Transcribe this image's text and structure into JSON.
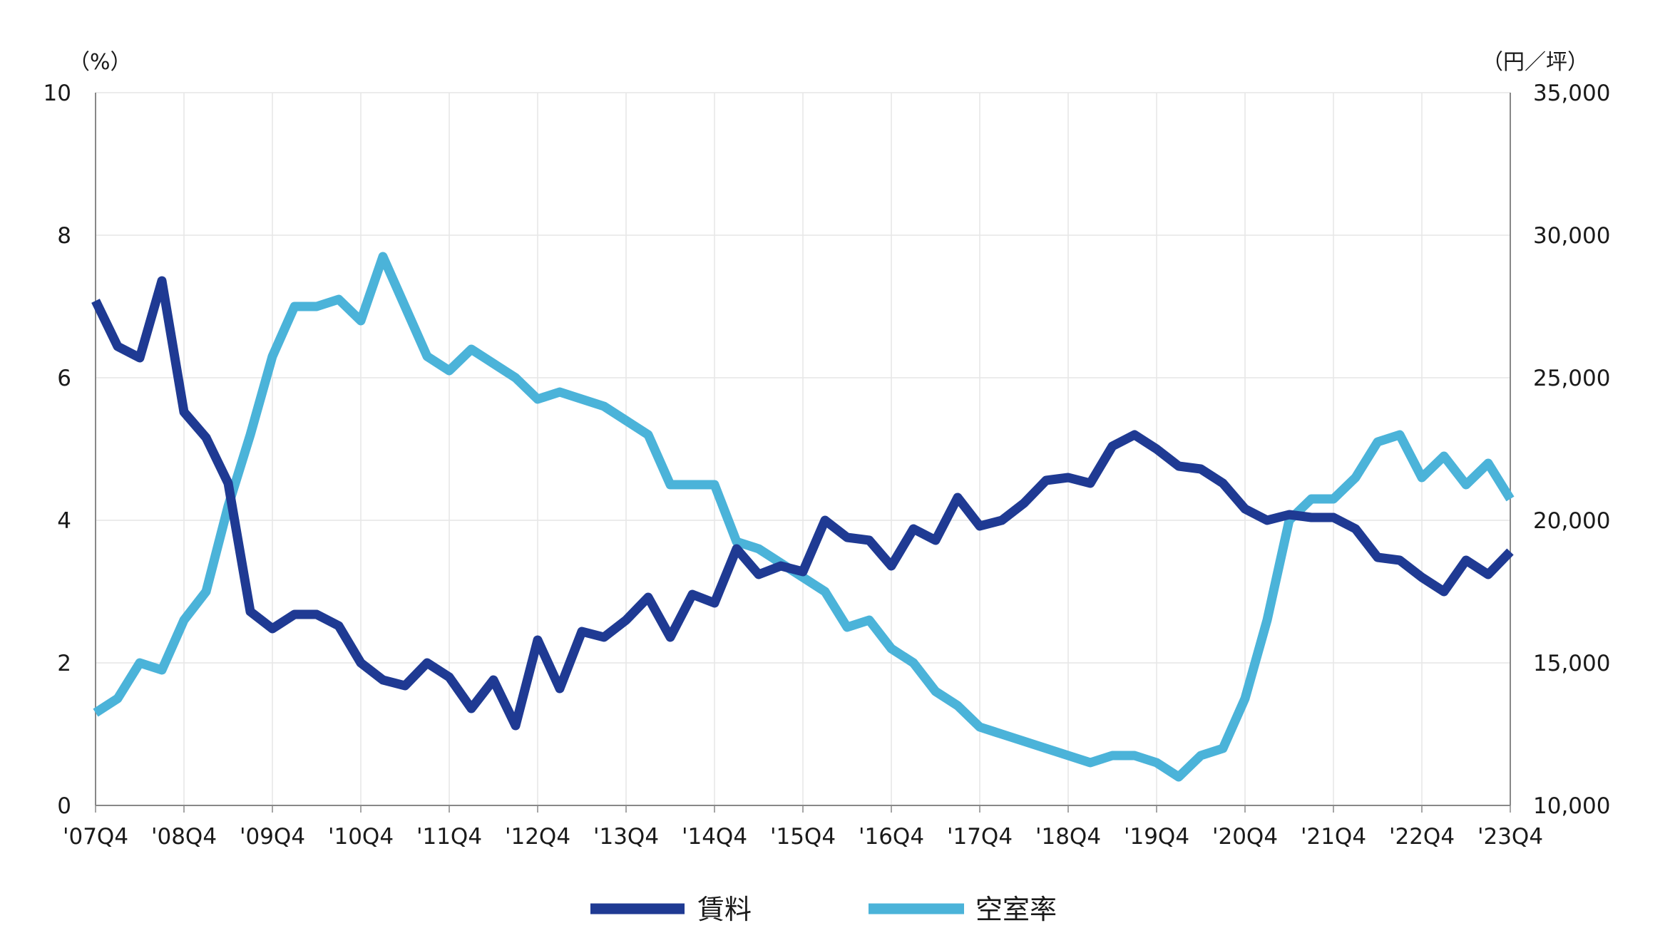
{
  "chart_data": {
    "type": "line",
    "categories": [
      "'07Q4",
      "'08Q1",
      "'08Q2",
      "'08Q3",
      "'08Q4",
      "'09Q1",
      "'09Q2",
      "'09Q3",
      "'09Q4",
      "'10Q1",
      "'10Q2",
      "'10Q3",
      "'10Q4",
      "'11Q1",
      "'11Q2",
      "'11Q3",
      "'11Q4",
      "'12Q1",
      "'12Q2",
      "'12Q3",
      "'12Q4",
      "'13Q1",
      "'13Q2",
      "'13Q3",
      "'13Q4",
      "'14Q1",
      "'14Q2",
      "'14Q3",
      "'14Q4",
      "'15Q1",
      "'15Q2",
      "'15Q3",
      "'15Q4",
      "'16Q1",
      "'16Q2",
      "'16Q3",
      "'16Q4",
      "'17Q1",
      "'17Q2",
      "'17Q3",
      "'17Q4",
      "'18Q1",
      "'18Q2",
      "'18Q3",
      "'18Q4",
      "'19Q1",
      "'19Q2",
      "'19Q3",
      "'19Q4",
      "'20Q1",
      "'20Q2",
      "'20Q3",
      "'20Q4",
      "'21Q1",
      "'21Q2",
      "'21Q3",
      "'21Q4",
      "'22Q1",
      "'22Q2",
      "'22Q3",
      "'22Q4",
      "'23Q1",
      "'23Q2",
      "'23Q3",
      "'23Q4"
    ],
    "x_tick_labels": [
      "'07Q4",
      "'08Q4",
      "'09Q4",
      "'10Q4",
      "'11Q4",
      "'12Q4",
      "'13Q4",
      "'14Q4",
      "'15Q4",
      "'16Q4",
      "'17Q4",
      "'18Q4",
      "'19Q4",
      "'20Q4",
      "'21Q4",
      "'22Q4",
      "'23Q4"
    ],
    "y_left": {
      "unit_label": "（%）",
      "lim": [
        0,
        10
      ],
      "ticks": [
        "0",
        "2",
        "4",
        "6",
        "8",
        "10"
      ]
    },
    "y_right": {
      "unit_label": "（円／坪）",
      "lim": [
        10000,
        35000
      ],
      "ticks": [
        "10,000",
        "15,000",
        "20,000",
        "25,000",
        "30,000",
        "35,000"
      ]
    },
    "grid": true,
    "legend_position": "bottom-center",
    "series": [
      {
        "name": "賃料",
        "axis": "right",
        "color": "#1f3a93",
        "values": [
          27700,
          26100,
          25700,
          28400,
          23800,
          22900,
          21300,
          16800,
          16200,
          16700,
          16700,
          16300,
          15000,
          14400,
          14200,
          15000,
          14500,
          13400,
          14400,
          12800,
          15800,
          14100,
          16100,
          15900,
          16500,
          17300,
          15900,
          17400,
          17100,
          19000,
          18100,
          18400,
          18200,
          20000,
          19400,
          19300,
          18400,
          19700,
          19300,
          20800,
          19800,
          20000,
          20600,
          21400,
          21500,
          21300,
          22600,
          23000,
          22500,
          21900,
          21800,
          21300,
          20400,
          20000,
          20200,
          20100,
          20100,
          19700,
          18700,
          18600,
          18000,
          17500,
          18600,
          18100,
          18900
        ]
      },
      {
        "name": "空室率",
        "axis": "left",
        "color": "#4bb3d9",
        "values": [
          1.3,
          1.5,
          2.0,
          1.9,
          2.6,
          3.0,
          4.2,
          5.2,
          6.3,
          7.0,
          7.0,
          7.1,
          6.8,
          7.7,
          7.0,
          6.3,
          6.1,
          6.4,
          6.2,
          6.0,
          5.7,
          5.8,
          5.7,
          5.6,
          5.4,
          5.2,
          4.5,
          4.5,
          4.5,
          3.7,
          3.6,
          3.4,
          3.2,
          3.0,
          2.5,
          2.6,
          2.2,
          2.0,
          1.6,
          1.4,
          1.1,
          1.0,
          0.9,
          0.8,
          0.7,
          0.6,
          0.7,
          0.7,
          0.6,
          0.4,
          0.7,
          0.8,
          1.5,
          2.6,
          4.0,
          4.3,
          4.3,
          4.6,
          5.1,
          5.2,
          4.6,
          4.9,
          4.5,
          4.8,
          4.3
        ]
      }
    ]
  }
}
